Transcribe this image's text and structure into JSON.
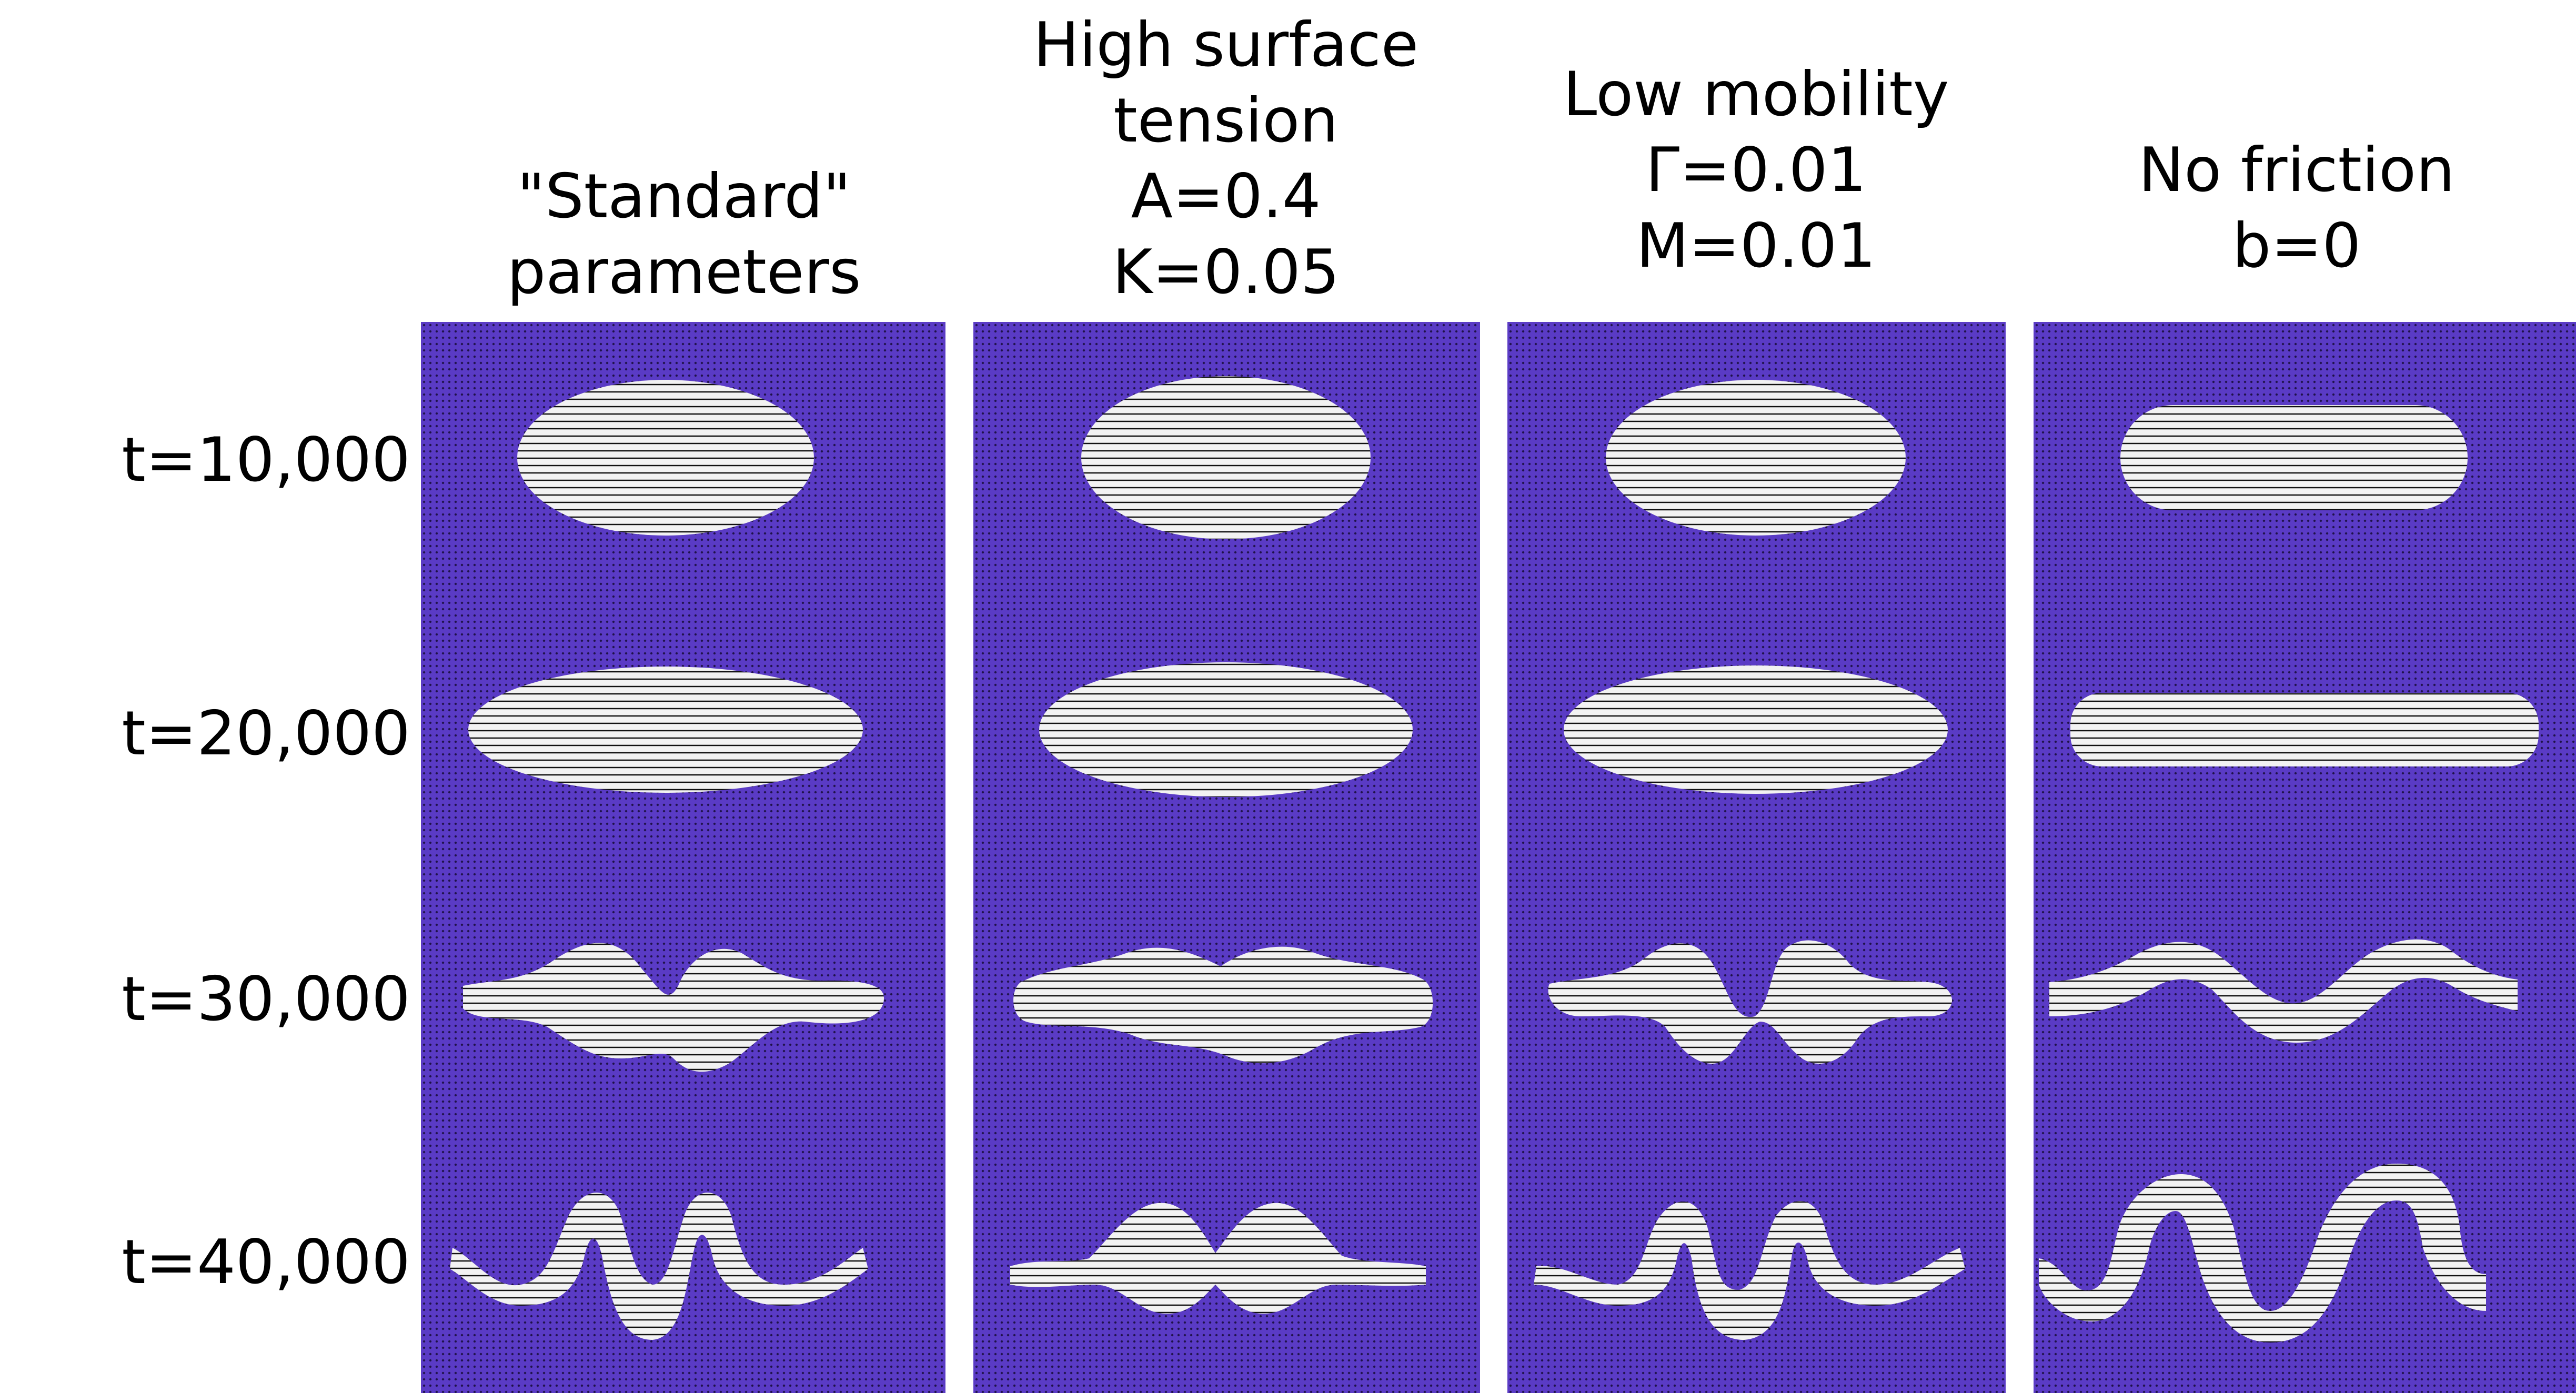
{
  "columns": [
    {
      "lines": [
        "\"Standard\"",
        "parameters"
      ]
    },
    {
      "lines": [
        "High surface",
        "tension",
        "A=0.4",
        "K=0.05"
      ]
    },
    {
      "lines": [
        "Low mobility",
        "Γ=0.01",
        "M=0.01"
      ]
    },
    {
      "lines": [
        "No friction",
        "b=0"
      ]
    }
  ],
  "rows": [
    {
      "label": "t=10,000"
    },
    {
      "label": "t=20,000"
    },
    {
      "label": "t=30,000"
    },
    {
      "label": "t=40,000"
    }
  ],
  "colors": {
    "background_field": "#5a3bc5",
    "droplet": "#f2f2f2",
    "director_lines": "#111111"
  }
}
